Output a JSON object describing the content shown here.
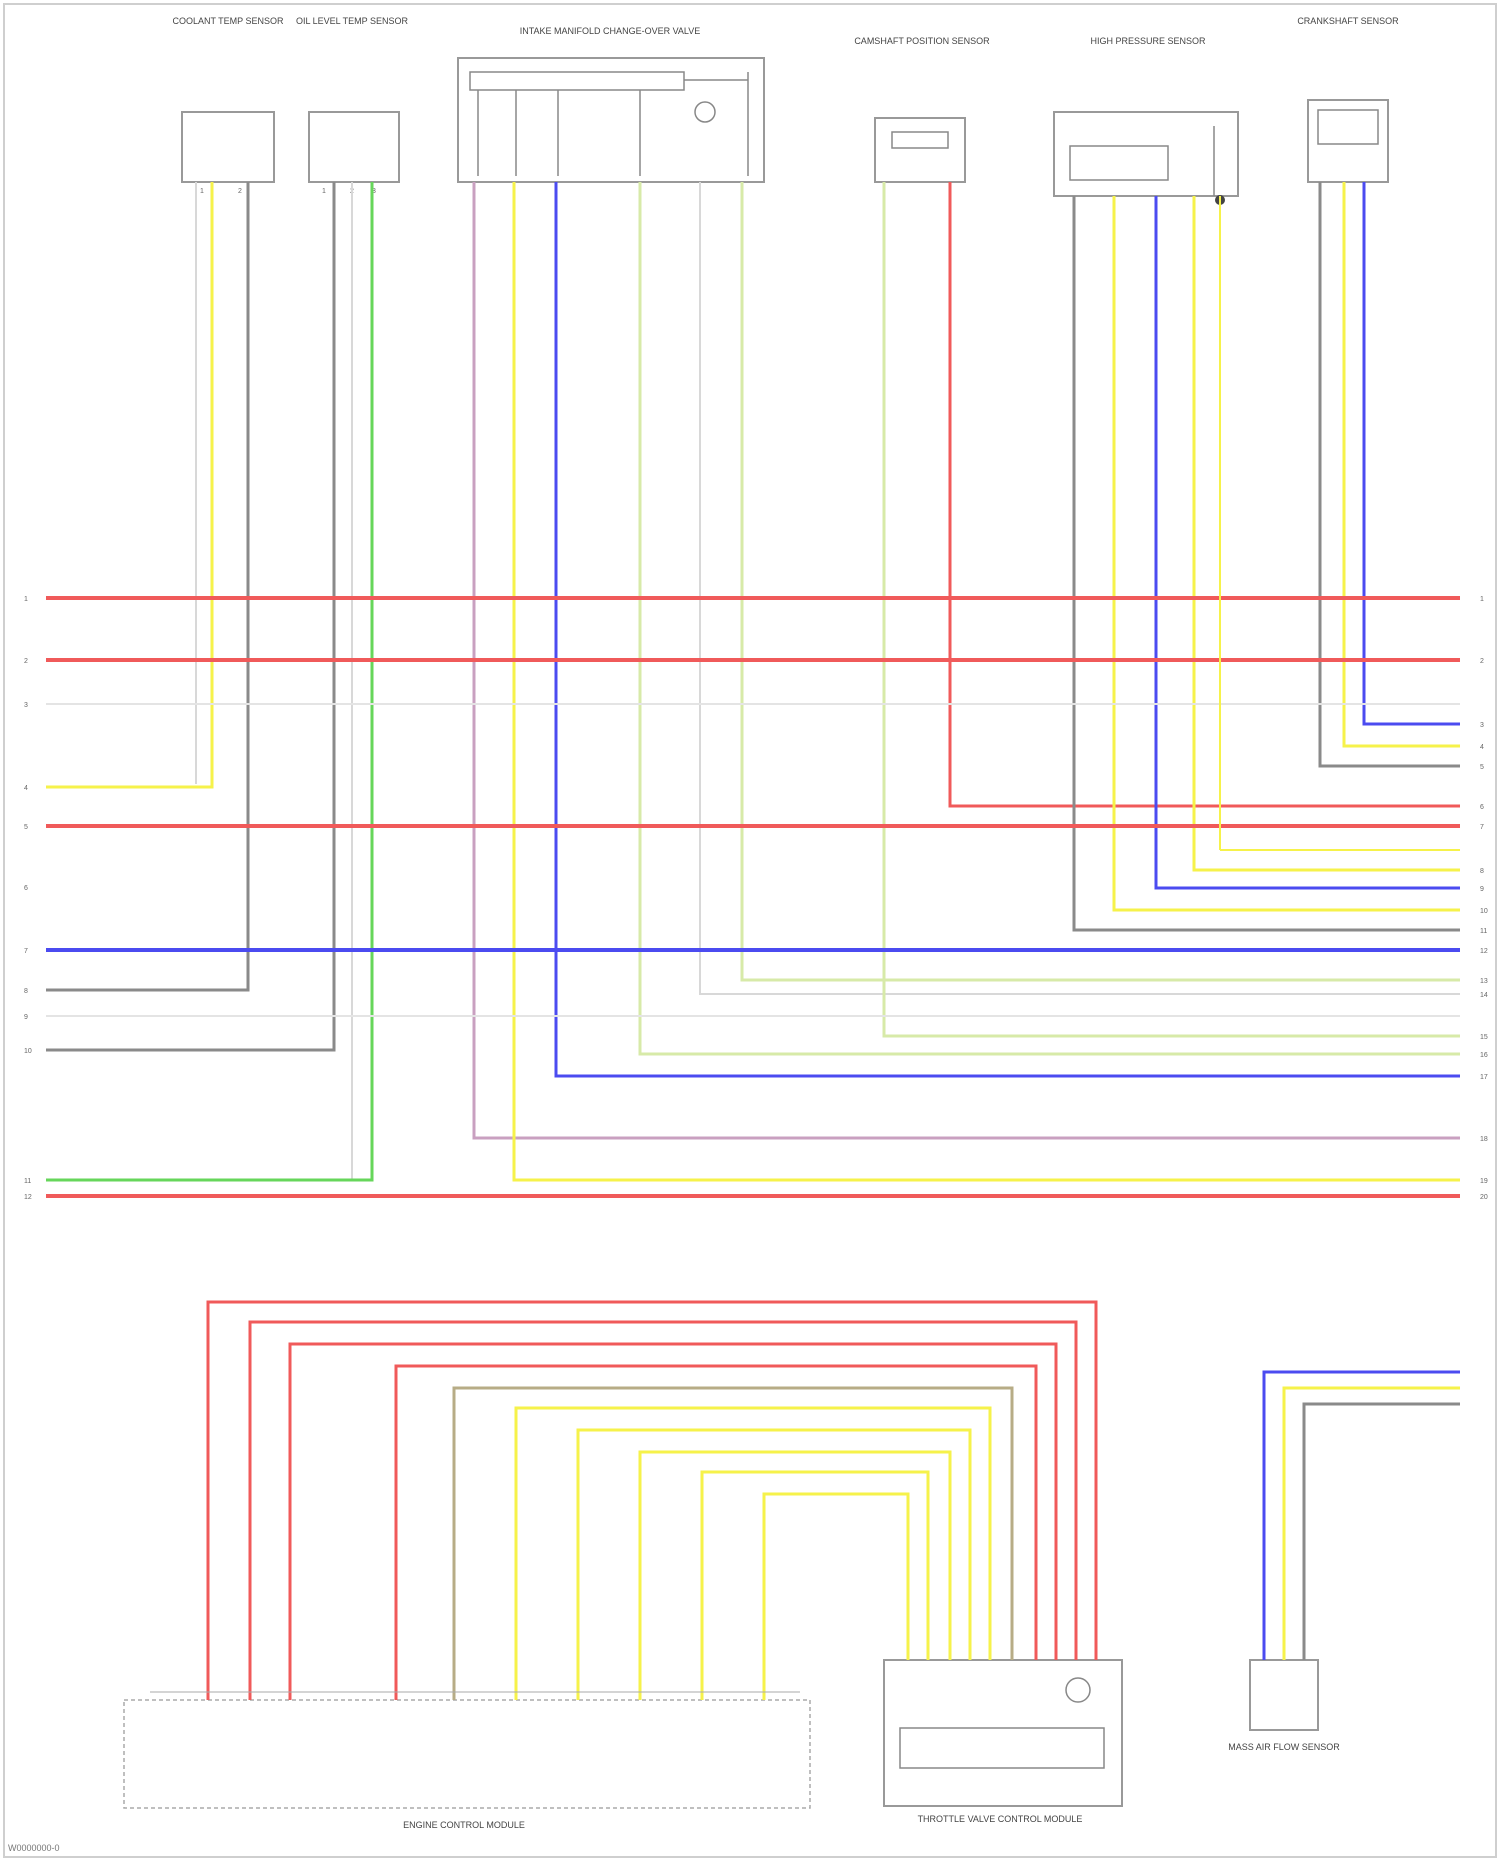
{
  "colors": {
    "red": "#f05a5a",
    "yellow": "#f6f24a",
    "blue": "#4b4bf0",
    "green": "#66d65a",
    "gray": "#8a8a8a",
    "white": "#d8d8d8",
    "pink": "#c9a0c0",
    "lightgreen": "#d7eaa8",
    "tan": "#b7ac86"
  },
  "components": {
    "c1": "COOLANT TEMP SENSOR",
    "c2": "OIL LEVEL TEMP SENSOR",
    "c3": "INTAKE MANIFOLD CHANGE-OVER VALVE",
    "c4": "CAMSHAFT POSITION SENSOR",
    "c5": "HIGH PRESSURE SENSOR",
    "c6": "CRANKSHAFT SENSOR",
    "c7": "ENGINE CONTROL MODULE",
    "c8": "THROTTLE VALVE CONTROL MODULE",
    "c9": "MASS AIR FLOW SENSOR"
  },
  "figure_code": "W0000000-0"
}
